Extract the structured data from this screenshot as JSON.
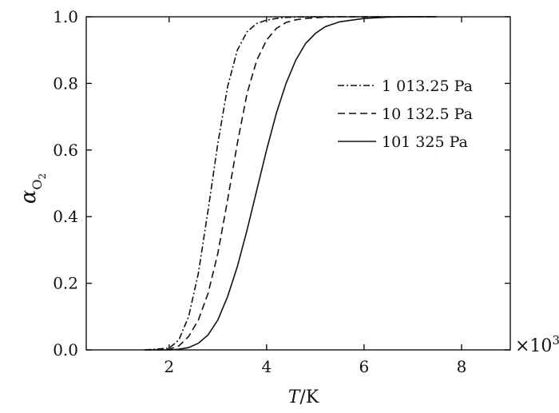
{
  "chart_data": {
    "type": "line",
    "xlabel_italic": "T",
    "xlabel_rest": "/K",
    "ylabel_main": "α",
    "ylabel_sub": "O",
    "ylabel_subsub": "2",
    "x_multiplier_prefix": "×10",
    "x_multiplier_exp": "3",
    "xlim": [
      0.3,
      9
    ],
    "ylim": [
      0,
      1
    ],
    "xticks": [
      2,
      4,
      6,
      8
    ],
    "xtick_labels": [
      "2",
      "4",
      "6",
      "8"
    ],
    "yticks": [
      0,
      0.2,
      0.4,
      0.6,
      0.8,
      1.0
    ],
    "ytick_labels": [
      "0.0",
      "0.2",
      "0.4",
      "0.6",
      "0.8",
      "1.0"
    ],
    "grid": false,
    "legend_position": "right",
    "x": [
      1.5,
      2.0,
      2.2,
      2.4,
      2.6,
      2.8,
      3.0,
      3.2,
      3.4,
      3.6,
      3.8,
      4.0,
      4.2,
      4.4,
      4.6,
      4.8,
      5.0,
      5.2,
      5.5,
      6.0,
      6.5,
      7.0,
      7.5
    ],
    "series": [
      {
        "name": "1 013.25 Pa",
        "style": "dashdot",
        "values": [
          0.0,
          0.005,
          0.03,
          0.1,
          0.23,
          0.42,
          0.62,
          0.79,
          0.9,
          0.955,
          0.98,
          0.99,
          0.995,
          0.998,
          0.999,
          1.0,
          1.0,
          1.0,
          1.0,
          1.0,
          1.0,
          1.0,
          1.0
        ]
      },
      {
        "name": "10 132.5 Pa",
        "style": "dashed",
        "values": [
          0.0,
          0.002,
          0.012,
          0.04,
          0.09,
          0.17,
          0.29,
          0.45,
          0.62,
          0.77,
          0.87,
          0.93,
          0.965,
          0.983,
          0.991,
          0.995,
          0.997,
          0.999,
          1.0,
          1.0,
          1.0,
          1.0,
          1.0
        ]
      },
      {
        "name": "101 325 Pa",
        "style": "solid",
        "values": [
          0.0,
          0.0,
          0.002,
          0.007,
          0.02,
          0.045,
          0.09,
          0.16,
          0.25,
          0.36,
          0.48,
          0.6,
          0.71,
          0.8,
          0.87,
          0.92,
          0.95,
          0.97,
          0.985,
          0.995,
          0.999,
          1.0,
          1.0
        ]
      }
    ]
  }
}
